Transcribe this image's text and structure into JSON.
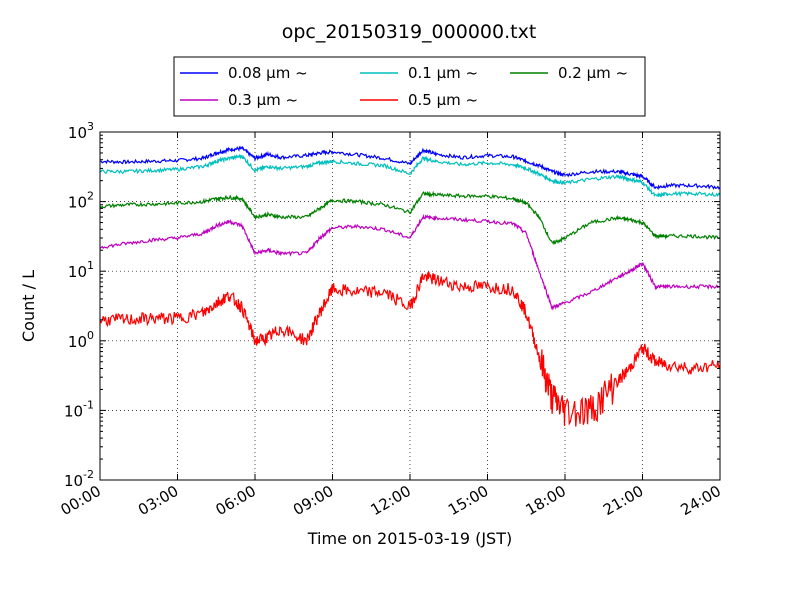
{
  "chart_data": {
    "type": "line",
    "title": "opc_20150319_000000.txt",
    "xlabel": "Time on 2015-03-19 (JST)",
    "ylabel": "Count / L",
    "yscale": "log",
    "ylim": [
      0.01,
      1000
    ],
    "xlim": [
      0,
      24
    ],
    "grid": true,
    "legend_position": "top",
    "x_tick_labels": [
      "00:00",
      "03:00",
      "06:00",
      "09:00",
      "12:00",
      "15:00",
      "18:00",
      "21:00",
      "24:00"
    ],
    "x": [
      0,
      1,
      2,
      3,
      4,
      4.5,
      5,
      5.5,
      6,
      6.5,
      7,
      8,
      8.5,
      9,
      10,
      11,
      12,
      12.5,
      13,
      14,
      15,
      16,
      16.5,
      17,
      17.5,
      18,
      19,
      20,
      20.5,
      21,
      21.5,
      22,
      23,
      24
    ],
    "series": [
      {
        "name": "0.08 μm ~",
        "color": "#0000ff",
        "values": [
          380,
          370,
          380,
          390,
          420,
          500,
          560,
          580,
          420,
          480,
          430,
          460,
          500,
          520,
          470,
          420,
          350,
          550,
          480,
          430,
          460,
          440,
          380,
          330,
          270,
          240,
          270,
          270,
          250,
          230,
          160,
          170,
          170,
          160
        ]
      },
      {
        "name": "0.1 μm ~",
        "color": "#00bfbf",
        "values": [
          270,
          270,
          280,
          290,
          320,
          380,
          420,
          450,
          280,
          320,
          300,
          320,
          360,
          380,
          350,
          330,
          250,
          420,
          380,
          340,
          360,
          340,
          300,
          250,
          200,
          185,
          210,
          230,
          210,
          190,
          120,
          130,
          130,
          125
        ]
      },
      {
        "name": "0.2 μm ~",
        "color": "#008000",
        "values": [
          85,
          90,
          92,
          95,
          100,
          110,
          115,
          110,
          60,
          65,
          60,
          60,
          80,
          105,
          100,
          90,
          70,
          130,
          125,
          120,
          120,
          110,
          95,
          60,
          25,
          30,
          50,
          58,
          55,
          50,
          32,
          32,
          32,
          30
        ]
      },
      {
        "name": "0.3 μm ~",
        "color": "#bf00bf",
        "values": [
          22,
          25,
          28,
          30,
          35,
          45,
          52,
          45,
          18,
          20,
          18,
          18,
          30,
          42,
          44,
          40,
          30,
          60,
          58,
          55,
          52,
          48,
          35,
          10,
          3,
          3.5,
          5,
          8,
          10,
          13,
          6,
          6,
          6,
          6
        ]
      },
      {
        "name": "0.5 μm ~",
        "color": "#ff0000",
        "values": [
          2.0,
          2.0,
          2.1,
          2.1,
          2.5,
          3.5,
          4.5,
          3.0,
          1.0,
          1.1,
          1.5,
          1.0,
          2.5,
          5.5,
          5.0,
          5.0,
          3.0,
          8.5,
          7.5,
          6.0,
          6.0,
          5.5,
          2.5,
          0.6,
          0.15,
          0.1,
          0.1,
          0.25,
          0.4,
          0.8,
          0.5,
          0.45,
          0.4,
          0.45
        ]
      }
    ]
  }
}
